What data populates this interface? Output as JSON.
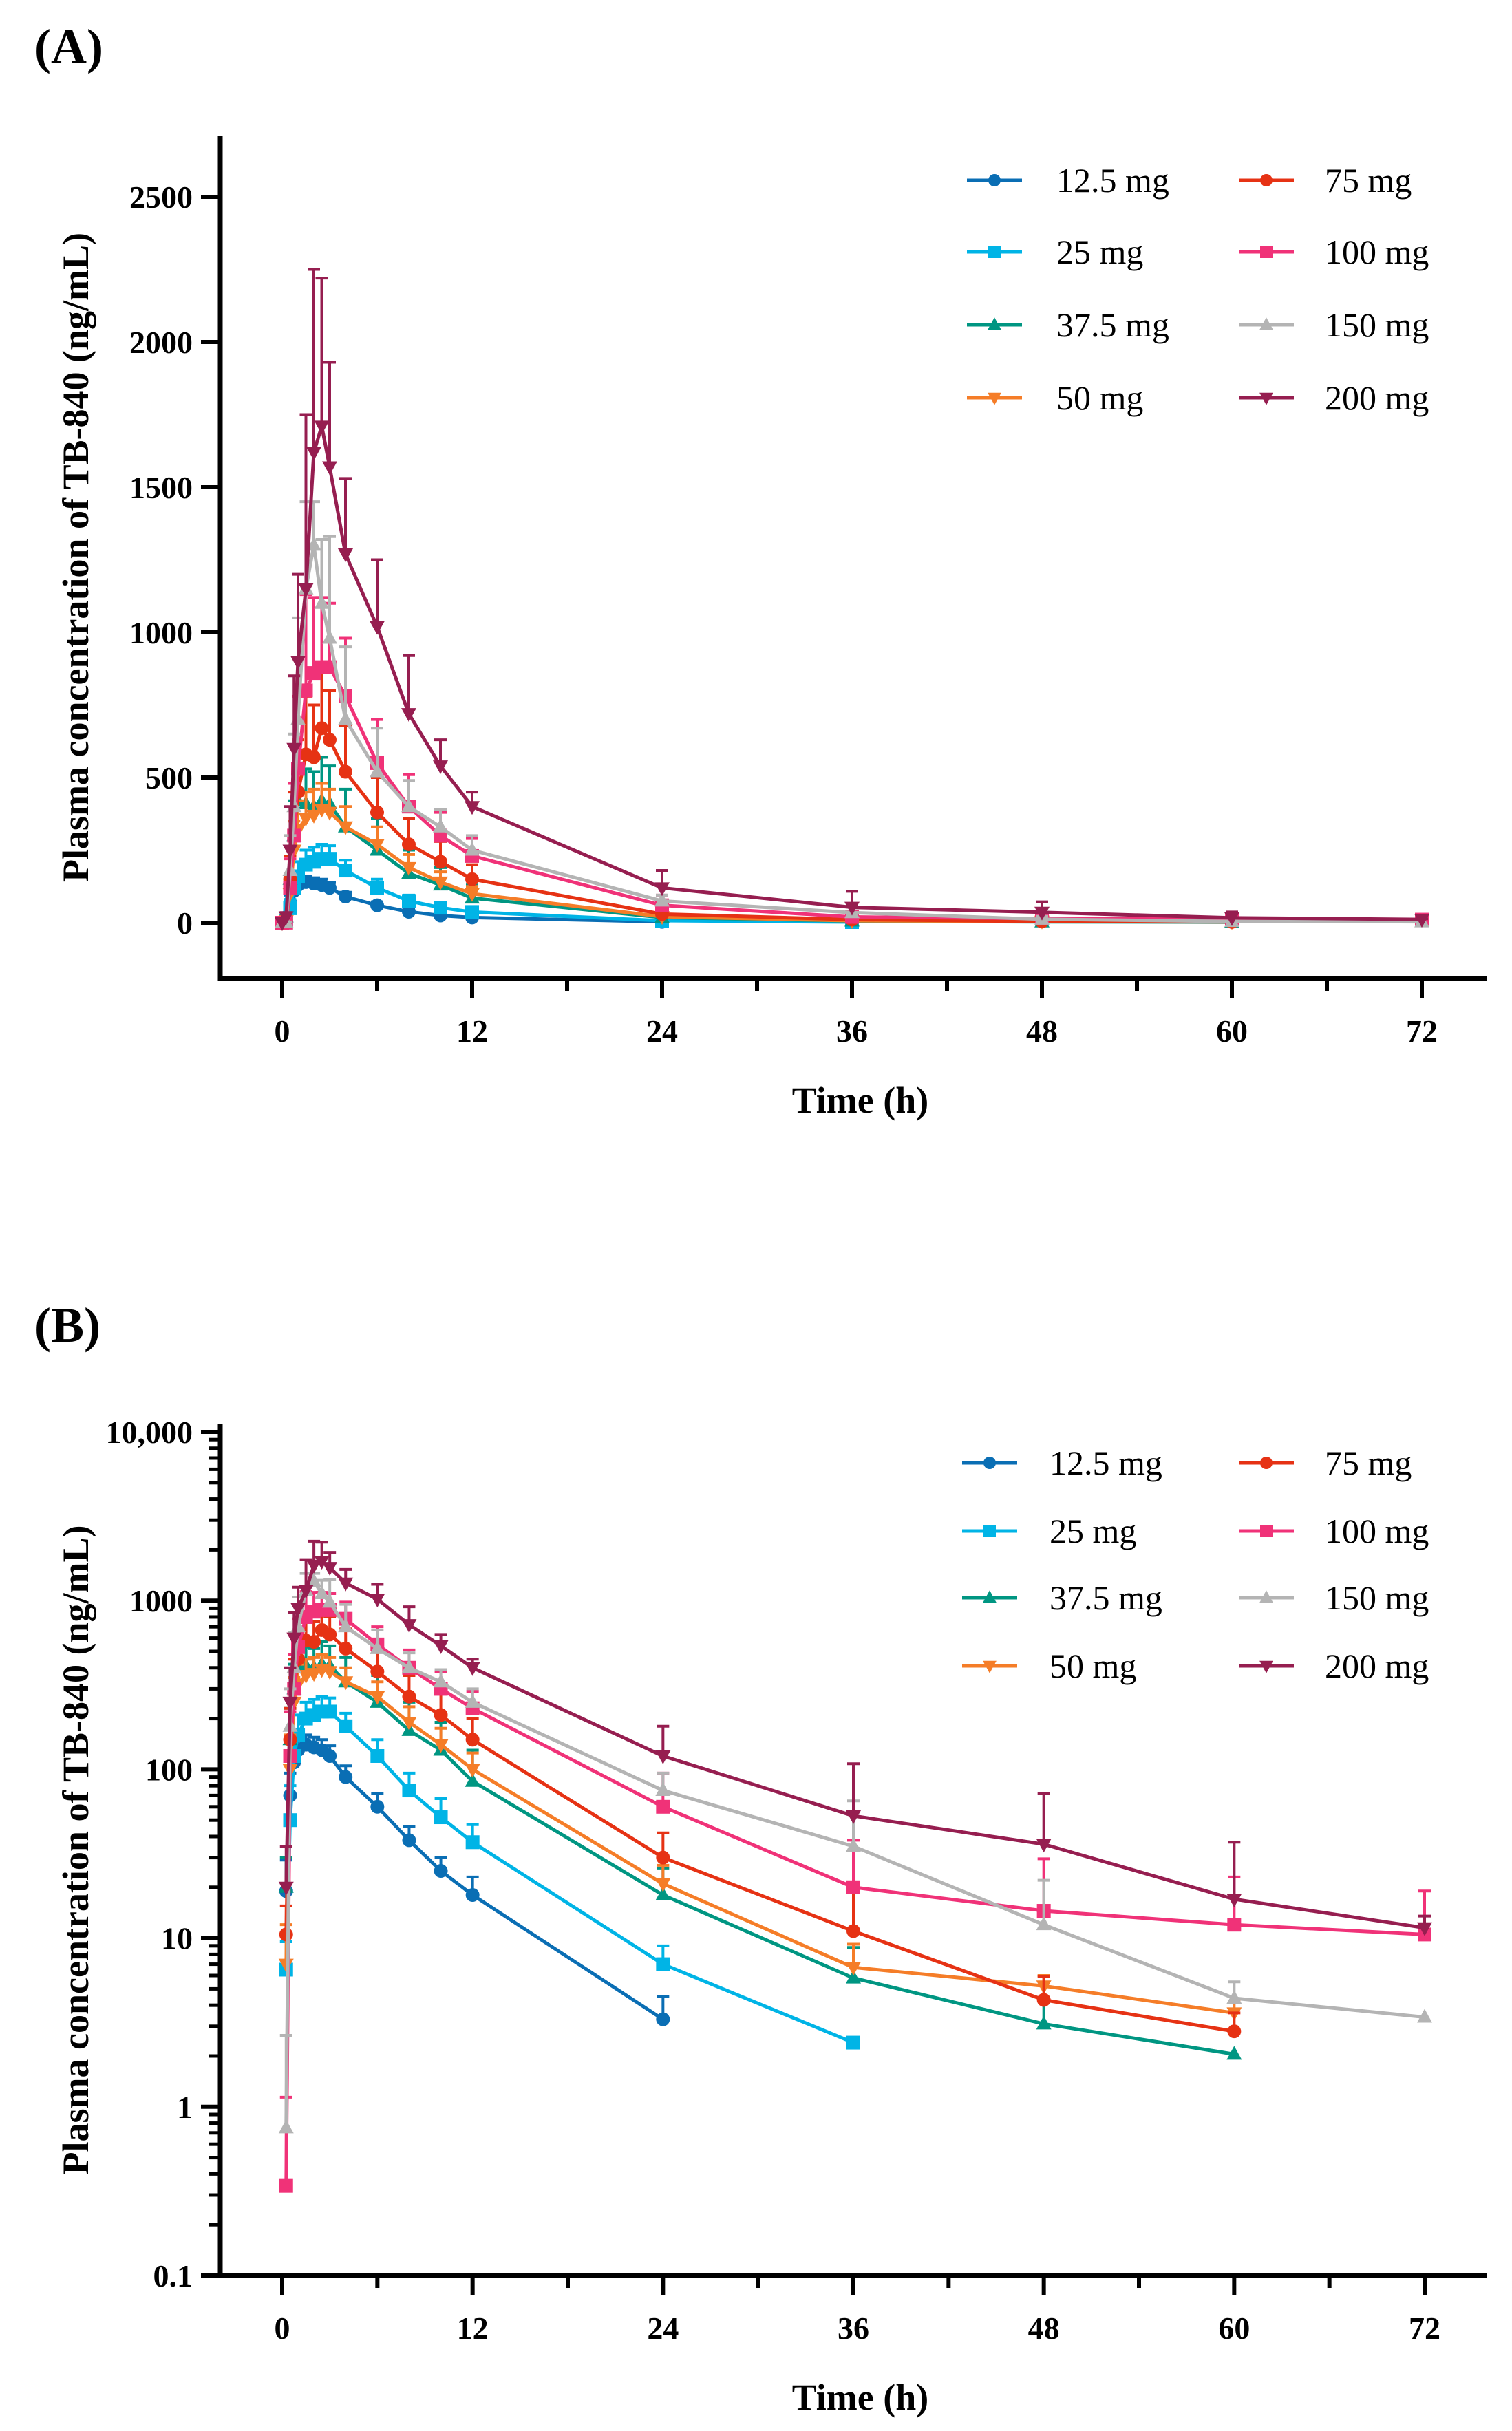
{
  "chart_data": [
    {
      "panel_label": "(A)",
      "type": "line",
      "scale": "linear",
      "xlabel": "Time (h)",
      "ylabel": "Plasma concentration of TB-840 (ng/mL)",
      "xlim": [
        0,
        72
      ],
      "ylim": [
        0,
        2500
      ],
      "xticks": [
        "0",
        "12",
        "24",
        "36",
        "48",
        "60",
        "72"
      ],
      "yticks": [
        "0",
        "500",
        "1000",
        "1500",
        "2000",
        "2500"
      ],
      "legend_position": "top-right"
    },
    {
      "panel_label": "(B)",
      "type": "line",
      "scale": "log",
      "xlabel": "Time (h)",
      "ylabel": "Plasma concentration of TB-840 (ng/mL)",
      "xlim": [
        0,
        72
      ],
      "ylim": [
        0.1,
        10000
      ],
      "xticks": [
        "0",
        "12",
        "24",
        "36",
        "48",
        "60",
        "72"
      ],
      "yticks": [
        "0.1",
        "1",
        "10",
        "100",
        "1000",
        "10,000"
      ],
      "legend_position": "top-right"
    }
  ],
  "time_h": [
    0,
    0.25,
    0.5,
    0.75,
    1,
    1.5,
    2,
    2.5,
    3,
    4,
    6,
    8,
    10,
    12,
    24,
    36,
    48,
    60,
    72
  ],
  "series": [
    {
      "name": "12.5 mg",
      "color": "#0a6eb4",
      "marker": "circle",
      "mean": [
        0,
        19,
        70,
        110,
        130,
        140,
        135,
        130,
        120,
        90,
        60,
        38,
        25,
        18,
        3.3,
        null,
        null,
        null,
        null
      ],
      "sd": [
        0,
        10,
        25,
        30,
        25,
        20,
        20,
        20,
        18,
        15,
        12,
        8,
        5,
        5,
        1.2,
        null,
        null,
        null,
        null
      ]
    },
    {
      "name": "25 mg",
      "color": "#00b4e6",
      "marker": "square",
      "mean": [
        0,
        6.5,
        50,
        120,
        160,
        200,
        210,
        220,
        220,
        180,
        120,
        75,
        52,
        37,
        7,
        2.4,
        null,
        null,
        null
      ],
      "sd": [
        0,
        3,
        30,
        40,
        50,
        50,
        50,
        50,
        45,
        35,
        30,
        20,
        15,
        10,
        2,
        0,
        null,
        null,
        null
      ]
    },
    {
      "name": "37.5 mg",
      "color": "#009682",
      "marker": "triangle-up",
      "mean": [
        0,
        20,
        150,
        300,
        420,
        410,
        400,
        420,
        410,
        330,
        250,
        170,
        130,
        85,
        18,
        5.8,
        3.1,
        2.05,
        null
      ],
      "sd": [
        0,
        10,
        80,
        120,
        130,
        120,
        120,
        150,
        130,
        130,
        110,
        80,
        60,
        45,
        8,
        3,
        1.3,
        0,
        null
      ]
    },
    {
      "name": "50 mg",
      "color": "#f57d28",
      "marker": "triangle-down",
      "mean": [
        0,
        7,
        100,
        250,
        320,
        360,
        370,
        390,
        380,
        330,
        270,
        190,
        140,
        100,
        21,
        6.7,
        5.2,
        3.6,
        null
      ],
      "sd": [
        0,
        5,
        60,
        100,
        100,
        90,
        90,
        90,
        80,
        70,
        60,
        45,
        35,
        25,
        6,
        2.5,
        0.8,
        0.6,
        null
      ]
    },
    {
      "name": "75 mg",
      "color": "#e63214",
      "marker": "circle",
      "mean": [
        0,
        10.5,
        150,
        300,
        450,
        580,
        570,
        670,
        630,
        520,
        380,
        270,
        210,
        150,
        30,
        11,
        4.3,
        2.8,
        null
      ],
      "sd": [
        0,
        5,
        80,
        150,
        180,
        200,
        180,
        200,
        170,
        160,
        120,
        90,
        70,
        50,
        12,
        8,
        1.6,
        0.8,
        null
      ]
    },
    {
      "name": "100 mg",
      "color": "#f03278",
      "marker": "square",
      "mean": [
        0,
        0.34,
        120,
        300,
        530,
        800,
        860,
        880,
        880,
        780,
        550,
        400,
        300,
        230,
        60,
        20,
        14.5,
        12,
        10.5
      ],
      "sd": [
        0,
        0.8,
        100,
        180,
        250,
        330,
        260,
        240,
        220,
        200,
        150,
        110,
        80,
        60,
        35,
        18,
        15,
        11,
        8.5
      ]
    },
    {
      "name": "150 mg",
      "color": "#b4b4b4",
      "marker": "triangle-up",
      "mean": [
        0,
        0.75,
        180,
        400,
        700,
        1150,
        1300,
        1100,
        980,
        700,
        520,
        400,
        330,
        250,
        75,
        35,
        12,
        4.4,
        3.4
      ],
      "sd": [
        0,
        1.9,
        120,
        250,
        350,
        300,
        150,
        220,
        350,
        250,
        150,
        90,
        60,
        50,
        20,
        30,
        10,
        1.1,
        0
      ]
    },
    {
      "name": "200 mg",
      "color": "#961e50",
      "marker": "triangle-down",
      "mean": [
        0,
        20,
        250,
        600,
        900,
        1150,
        1620,
        1710,
        1570,
        1270,
        1020,
        720,
        540,
        400,
        120,
        53,
        36,
        17,
        11.5
      ],
      "sd": [
        0,
        15,
        150,
        250,
        300,
        600,
        630,
        510,
        360,
        260,
        230,
        200,
        90,
        50,
        60,
        55,
        36,
        20,
        2
      ]
    }
  ]
}
